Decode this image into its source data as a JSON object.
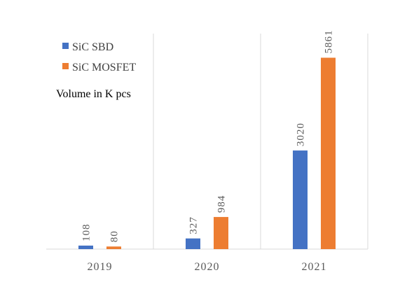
{
  "chart_data": {
    "type": "bar",
    "categories": [
      "2019",
      "2020",
      "2021"
    ],
    "series": [
      {
        "name": "SiC SBD",
        "values": [
          108,
          327,
          3020
        ],
        "color": "#4472C4"
      },
      {
        "name": "SiC MOSFET",
        "values": [
          80,
          984,
          5861
        ],
        "color": "#ED7D31"
      }
    ],
    "annotation": "Volume in K pcs",
    "ylim": [
      0,
      6600
    ],
    "legend": "top-left",
    "grid": "vertical separators between categories"
  }
}
